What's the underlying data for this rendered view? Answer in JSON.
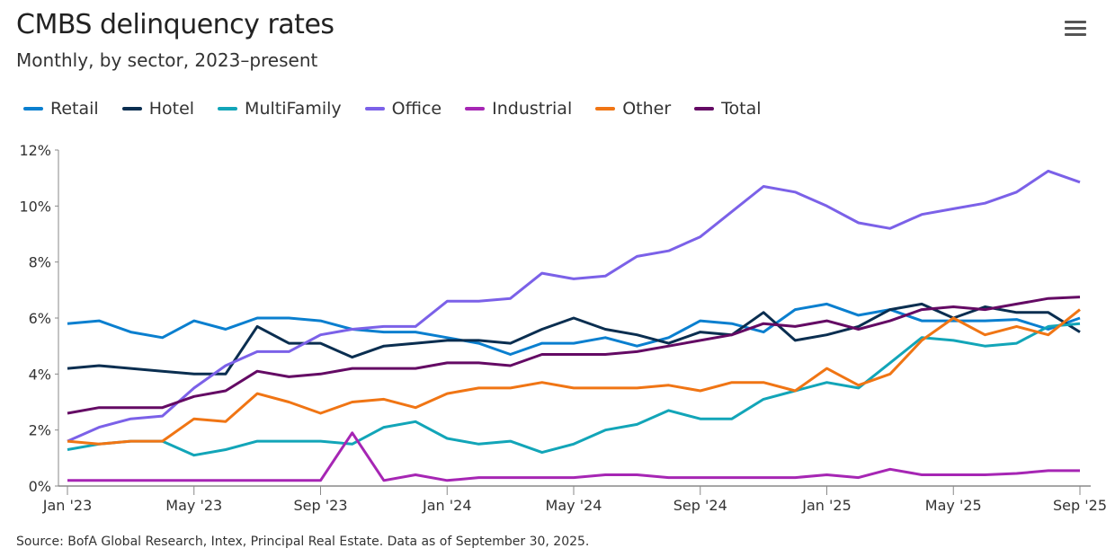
{
  "header": {
    "title": "CMBS delinquency rates",
    "subtitle": "Monthly, by sector, 2023–present",
    "menu_icon": "hamburger-menu-icon"
  },
  "footer": {
    "source": "Source:  BofA Global Research, Intex, Principal Real Estate. Data as of September 30, 2025."
  },
  "chart_data": {
    "type": "line",
    "title": "CMBS delinquency rates",
    "subtitle": "Monthly, by sector, 2023–present",
    "xlabel": "",
    "ylabel": "",
    "ylim": [
      0,
      12
    ],
    "yticks": [
      "0%",
      "2%",
      "4%",
      "6%",
      "8%",
      "10%",
      "12%"
    ],
    "ytick_values": [
      0,
      2,
      4,
      6,
      8,
      10,
      12
    ],
    "xticks": [
      "Jan '23",
      "May '23",
      "Sep '23",
      "Jan '24",
      "May '24",
      "Sep '24",
      "Jan '25",
      "May '25",
      "Sep '25"
    ],
    "xtick_index": [
      0,
      4,
      8,
      12,
      16,
      20,
      24,
      28,
      32
    ],
    "legend_position": "top-left",
    "grid": false,
    "x": [
      "2023-01",
      "2023-02",
      "2023-03",
      "2023-04",
      "2023-05",
      "2023-06",
      "2023-07",
      "2023-08",
      "2023-09",
      "2023-10",
      "2023-11",
      "2023-12",
      "2024-01",
      "2024-02",
      "2024-03",
      "2024-04",
      "2024-05",
      "2024-06",
      "2024-07",
      "2024-08",
      "2024-09",
      "2024-10",
      "2024-11",
      "2024-12",
      "2025-01",
      "2025-02",
      "2025-03",
      "2025-04",
      "2025-05",
      "2025-06",
      "2025-07",
      "2025-08",
      "2025-09"
    ],
    "series": [
      {
        "name": "Retail",
        "color": "#0a7fcf",
        "values": [
          5.8,
          5.9,
          5.5,
          5.3,
          5.9,
          5.6,
          6.0,
          6.0,
          5.9,
          5.6,
          5.5,
          5.5,
          5.3,
          5.1,
          4.7,
          5.1,
          5.1,
          5.3,
          5.0,
          5.3,
          5.9,
          5.8,
          5.5,
          6.3,
          6.5,
          6.1,
          6.3,
          5.9,
          5.9,
          5.9,
          5.95,
          5.6,
          6.0
        ]
      },
      {
        "name": "Hotel",
        "color": "#0a2e50",
        "values": [
          4.2,
          4.3,
          4.2,
          4.1,
          4.0,
          4.0,
          5.7,
          5.1,
          5.1,
          4.6,
          5.0,
          5.1,
          5.2,
          5.2,
          5.1,
          5.6,
          6.0,
          5.6,
          5.4,
          5.1,
          5.5,
          5.4,
          6.2,
          5.2,
          5.4,
          5.7,
          6.3,
          6.5,
          6.0,
          6.4,
          6.2,
          6.2,
          5.5
        ]
      },
      {
        "name": "MultiFamily",
        "color": "#12a5b8",
        "values": [
          1.3,
          1.5,
          1.6,
          1.6,
          1.1,
          1.3,
          1.6,
          1.6,
          1.6,
          1.5,
          2.1,
          2.3,
          1.7,
          1.5,
          1.6,
          1.2,
          1.5,
          2.0,
          2.2,
          2.7,
          2.4,
          2.4,
          3.1,
          3.4,
          3.7,
          3.5,
          4.4,
          5.3,
          5.2,
          5.0,
          5.1,
          5.7,
          5.8
        ]
      },
      {
        "name": "Office",
        "color": "#7b61e8",
        "values": [
          1.6,
          2.1,
          2.4,
          2.5,
          3.5,
          4.3,
          4.8,
          4.8,
          5.4,
          5.6,
          5.7,
          5.7,
          6.6,
          6.6,
          6.7,
          7.6,
          7.4,
          7.5,
          8.2,
          8.4,
          8.9,
          9.8,
          10.7,
          10.5,
          10.0,
          9.4,
          9.2,
          9.7,
          9.9,
          10.1,
          10.5,
          11.25,
          10.85
        ]
      },
      {
        "name": "Industrial",
        "color": "#a626b4",
        "values": [
          0.2,
          0.2,
          0.2,
          0.2,
          0.2,
          0.2,
          0.2,
          0.2,
          0.2,
          1.9,
          0.2,
          0.4,
          0.2,
          0.3,
          0.3,
          0.3,
          0.3,
          0.4,
          0.4,
          0.3,
          0.3,
          0.3,
          0.3,
          0.3,
          0.4,
          0.3,
          0.6,
          0.4,
          0.4,
          0.4,
          0.45,
          0.55,
          0.55
        ]
      },
      {
        "name": "Other",
        "color": "#f07514",
        "values": [
          1.6,
          1.5,
          1.6,
          1.6,
          2.4,
          2.3,
          3.3,
          3.0,
          2.6,
          3.0,
          3.1,
          2.8,
          3.3,
          3.5,
          3.5,
          3.7,
          3.5,
          3.5,
          3.5,
          3.6,
          3.4,
          3.7,
          3.7,
          3.4,
          4.2,
          3.6,
          4.0,
          5.2,
          6.0,
          5.4,
          5.7,
          5.4,
          6.3
        ]
      },
      {
        "name": "Total",
        "color": "#640a64",
        "values": [
          2.6,
          2.8,
          2.8,
          2.8,
          3.2,
          3.4,
          4.1,
          3.9,
          4.0,
          4.2,
          4.2,
          4.2,
          4.4,
          4.4,
          4.3,
          4.7,
          4.7,
          4.7,
          4.8,
          5.0,
          5.2,
          5.4,
          5.8,
          5.7,
          5.9,
          5.6,
          5.9,
          6.3,
          6.4,
          6.3,
          6.5,
          6.7,
          6.75
        ]
      }
    ]
  }
}
